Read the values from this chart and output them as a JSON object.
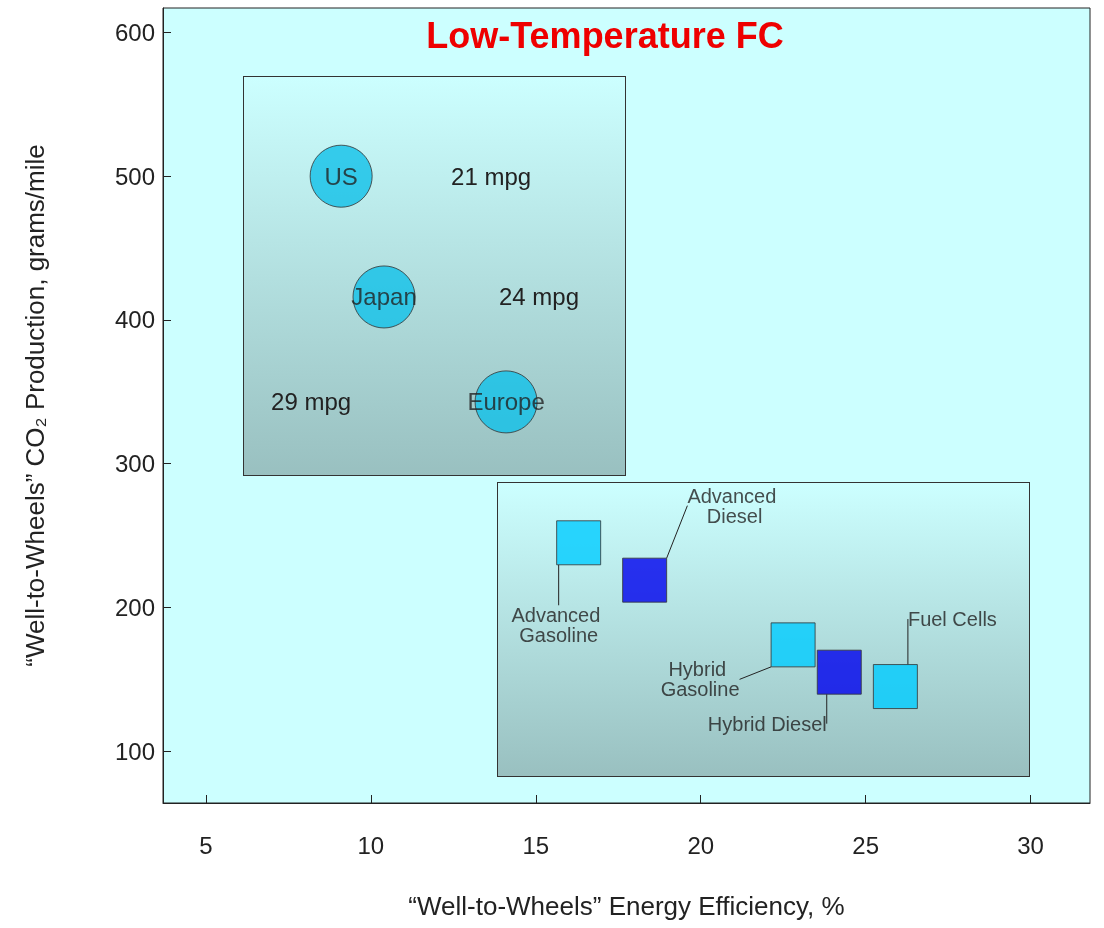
{
  "chart_data": {
    "type": "scatter",
    "title": "Low-Temperature FC",
    "xlabel": "“Well-to-Wheels” Energy Efficiency, %",
    "ylabel": "“Well-to-Wheels” CO₂ Production, grams/mile",
    "xlim": [
      3.7,
      31.8
    ],
    "xticks": [
      5,
      10,
      15,
      20,
      25,
      30
    ],
    "ylim": [
      64,
      617
    ],
    "yticks": [
      100,
      200,
      300,
      400,
      500,
      600
    ],
    "grid": false,
    "legend": false,
    "series": [
      {
        "name": "US",
        "color": "#10c0e8",
        "marker": "circle",
        "x": [
          9.1
        ],
        "values": [
          500
        ]
      },
      {
        "name": "Japan",
        "color": "#10c0e8",
        "marker": "circle",
        "x": [
          10.4
        ],
        "values": [
          416
        ]
      },
      {
        "name": "Europe",
        "color": "#10c0e8",
        "marker": "circle",
        "x": [
          14.1
        ],
        "values": [
          343
        ]
      },
      {
        "name": "Advanced Gasoline",
        "color": "#00ccff",
        "marker": "square",
        "x": [
          16.3
        ],
        "values": [
          245
        ]
      },
      {
        "name": "Advanced Diesel",
        "color": "#0000ee",
        "marker": "square",
        "x": [
          18.3
        ],
        "values": [
          219
        ]
      },
      {
        "name": "Hybrid Gasoline",
        "color": "#00ccff",
        "marker": "square",
        "x": [
          22.8
        ],
        "values": [
          174
        ]
      },
      {
        "name": "Hybrid Diesel",
        "color": "#0000ee",
        "marker": "square",
        "x": [
          24.2
        ],
        "values": [
          155
        ]
      },
      {
        "name": "Fuel Cells",
        "color": "#00ccff",
        "marker": "square",
        "x": [
          25.9
        ],
        "values": [
          145
        ]
      }
    ],
    "annotations": [
      "21 mpg",
      "24 mpg",
      "29 mpg"
    ]
  }
}
